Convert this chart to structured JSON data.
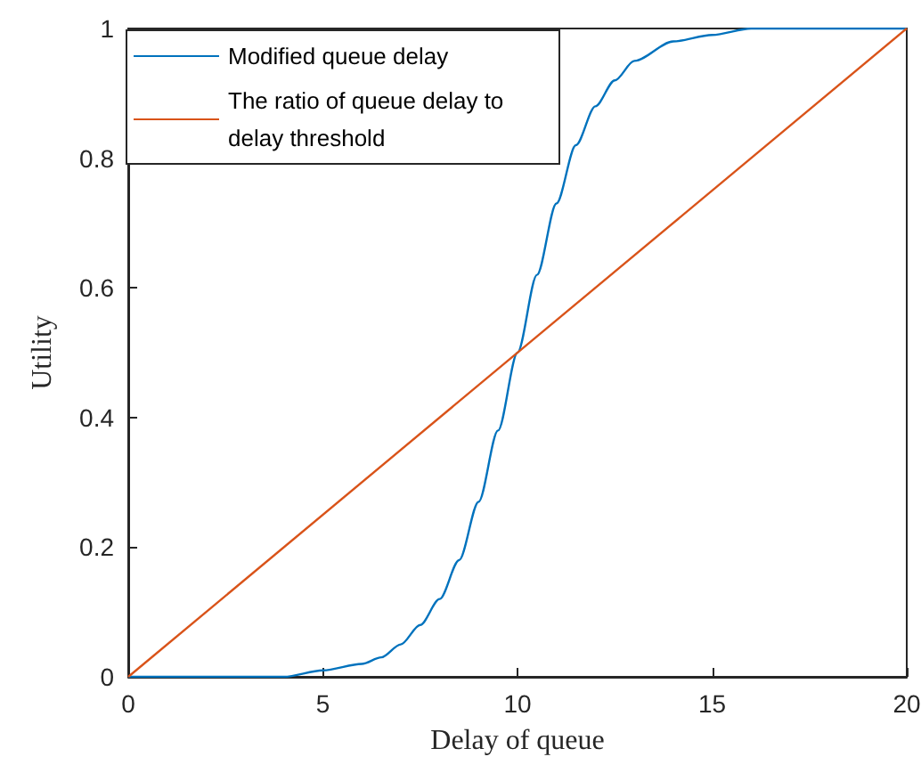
{
  "chart_data": {
    "type": "line",
    "xlabel": "Delay of queue",
    "ylabel": "Utility",
    "xlim": [
      0,
      20
    ],
    "xticks": [
      0,
      5,
      10,
      15,
      20
    ],
    "ylim": [
      0,
      1
    ],
    "yticks": [
      0,
      0.2,
      0.4,
      0.6,
      0.8,
      1
    ],
    "series": [
      {
        "name": "Modified queue delay",
        "color": "#0072bd",
        "x": [
          0,
          1,
          2,
          3,
          4,
          5,
          6,
          6.5,
          7,
          7.5,
          8,
          8.5,
          9,
          9.5,
          10,
          10.5,
          11,
          11.5,
          12,
          12.5,
          13,
          14,
          15,
          16,
          18,
          20
        ],
        "values": [
          0,
          0,
          0,
          0,
          0,
          0.01,
          0.02,
          0.03,
          0.05,
          0.08,
          0.12,
          0.18,
          0.27,
          0.38,
          0.5,
          0.62,
          0.73,
          0.82,
          0.88,
          0.92,
          0.95,
          0.98,
          0.99,
          1,
          1,
          1
        ]
      },
      {
        "name": "The ratio of queue delay to delay threshold",
        "color": "#d95319",
        "x": [
          0,
          20
        ],
        "values": [
          0,
          1
        ]
      }
    ],
    "grid": false,
    "legend": "top left",
    "marker": "none",
    "line_style": "solid"
  }
}
